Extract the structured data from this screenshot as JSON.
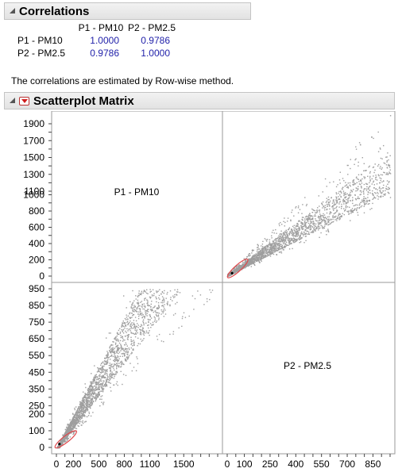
{
  "correlations": {
    "title": "Correlations",
    "columns": [
      "P1 - PM10",
      "P2 - PM2.5"
    ],
    "rows": [
      {
        "label": "P1 - PM10",
        "values": [
          "1.0000",
          "0.9786"
        ]
      },
      {
        "label": "P2 - PM2.5",
        "values": [
          "0.9786",
          "1.0000"
        ]
      }
    ],
    "note": "The correlations are estimated by Row-wise method."
  },
  "scatterplot_matrix": {
    "title": "Scatterplot Matrix",
    "diag_labels": [
      "P1 - PM10",
      "P2 - PM2.5"
    ]
  },
  "colors": {
    "points": "#9e9e9e",
    "ellipse": "#e0464a",
    "value_text": "#2222aa",
    "header_bg": "#e8e8e8"
  },
  "chart_data": [
    {
      "type": "scatter",
      "panel": "upper-right",
      "xlabel": "",
      "ylabel": "",
      "x_variable": "P2 - PM2.5",
      "y_variable": "P1 - PM10",
      "xlim": [
        0,
        1000
      ],
      "ylim": [
        0,
        2000
      ],
      "y_ticks": [
        0,
        100,
        200,
        300,
        400,
        500,
        600,
        700,
        800,
        900,
        1000
      ],
      "y_tick_labels": [
        "0",
        "200",
        "400",
        "600",
        "800",
        "1000"
      ],
      "y_ticks_upper": [
        1100,
        1300,
        1500,
        1700,
        1900
      ],
      "y_tick_labels_upper": [
        "1100",
        "1300",
        "1500",
        "1700",
        "1900"
      ],
      "regions": {
        "dense_core_x": [
          0,
          550
        ],
        "ratio_upper": 2.0,
        "ratio_lower": 0.85
      },
      "density_ellipse_center": [
        25,
        45
      ]
    },
    {
      "type": "scatter",
      "panel": "lower-left",
      "xlabel": "",
      "ylabel": "",
      "x_variable": "P1 - PM10",
      "y_variable": "P2 - PM2.5",
      "xlim": [
        0,
        1900
      ],
      "ylim": [
        0,
        1000
      ],
      "x_ticks": [
        0,
        100,
        200,
        300,
        400,
        500,
        600,
        700,
        800,
        900,
        1000,
        1100,
        1200,
        1300,
        1400,
        1500,
        1600,
        1700,
        1800,
        1900
      ],
      "x_tick_labels": [
        "0",
        "200",
        "500",
        "800",
        "1100",
        "1500"
      ],
      "y_ticks": [
        0,
        50,
        100,
        150,
        200,
        250,
        300,
        350,
        400,
        450,
        500,
        550,
        600,
        650,
        700,
        750,
        800,
        850,
        900,
        950
      ],
      "y_tick_labels": [
        "0",
        "100",
        "200",
        "250",
        "350",
        "450",
        "550",
        "650",
        "750",
        "850",
        "950"
      ],
      "density_ellipse_center": [
        45,
        25
      ]
    },
    {
      "type": "scatter",
      "panel": "bottom-right-axis",
      "x_tick_labels": [
        "0",
        "100",
        "250",
        "400",
        "550",
        "700",
        "850"
      ]
    }
  ]
}
